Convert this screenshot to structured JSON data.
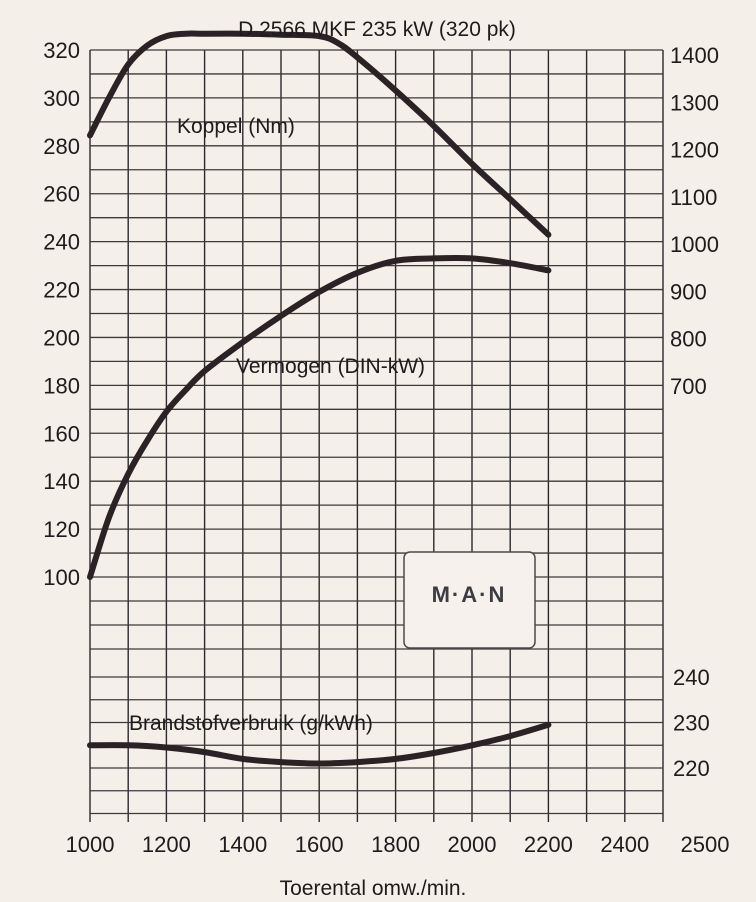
{
  "chart_data": {
    "type": "line",
    "title": "D 2566 MKF 235 kW (320 pk)",
    "xlabel": "Toerental omw./min.",
    "x_ticks": [
      "1000",
      "1200",
      "1400",
      "1600",
      "1800",
      "2000",
      "2200",
      "2400",
      "2500"
    ],
    "xlim": [
      1000,
      2500
    ],
    "left_axis": {
      "ticks": [
        "320",
        "300",
        "280",
        "260",
        "240",
        "220",
        "200",
        "180",
        "160",
        "140",
        "120",
        "100"
      ],
      "ylim": [
        100,
        320
      ],
      "unit": "kW"
    },
    "right_axis_torque": {
      "ticks": [
        "1400",
        "1300",
        "1200",
        "1100",
        "1000",
        "900",
        "800",
        "700"
      ],
      "ylim": [
        700,
        1400
      ],
      "unit": "Nm"
    },
    "right_axis_fuel": {
      "ticks": [
        "240",
        "230",
        "220"
      ],
      "ylim": [
        210,
        245
      ],
      "unit": "g/kWh"
    },
    "grid": true,
    "series": [
      {
        "name": "Koppel (Nm)",
        "axis": "right_axis_torque",
        "x": [
          1000,
          1050,
          1100,
          1150,
          1200,
          1250,
          1300,
          1400,
          1500,
          1600,
          1650,
          1700,
          1800,
          1900,
          2000,
          2100,
          2200
        ],
        "y": [
          1230,
          1310,
          1380,
          1420,
          1440,
          1445,
          1445,
          1445,
          1443,
          1440,
          1425,
          1395,
          1325,
          1250,
          1170,
          1095,
          1020
        ]
      },
      {
        "name": "Vermogen (DIN-kW)",
        "axis": "left_axis",
        "x": [
          1000,
          1050,
          1100,
          1150,
          1200,
          1250,
          1300,
          1400,
          1500,
          1600,
          1700,
          1800,
          1900,
          2000,
          2100,
          2200
        ],
        "y": [
          100,
          125,
          143,
          157,
          169,
          178,
          186,
          198,
          209,
          219,
          227,
          232,
          233,
          233,
          231,
          228
        ]
      },
      {
        "name": "Brandstofverbruik (g/kWh)",
        "axis": "right_axis_fuel",
        "x": [
          1000,
          1100,
          1200,
          1300,
          1400,
          1500,
          1600,
          1700,
          1800,
          1900,
          2000,
          2100,
          2200
        ],
        "y": [
          225,
          225,
          224.5,
          223.5,
          222,
          221.3,
          221,
          221.3,
          222,
          223.3,
          225,
          227,
          229.5
        ]
      }
    ],
    "annotations": [
      "Koppel (Nm)",
      "Vermogen (DIN-kW)",
      "Brandstofverbruik (g/kWh)"
    ],
    "colors": {
      "curve": "#2b2225",
      "grid": "#2a2a2c",
      "grid_cyan": "#7ec9d9",
      "grid_red": "#e58b80",
      "background": "#f4efe9"
    }
  },
  "logo": {
    "text": "M·A·N"
  }
}
